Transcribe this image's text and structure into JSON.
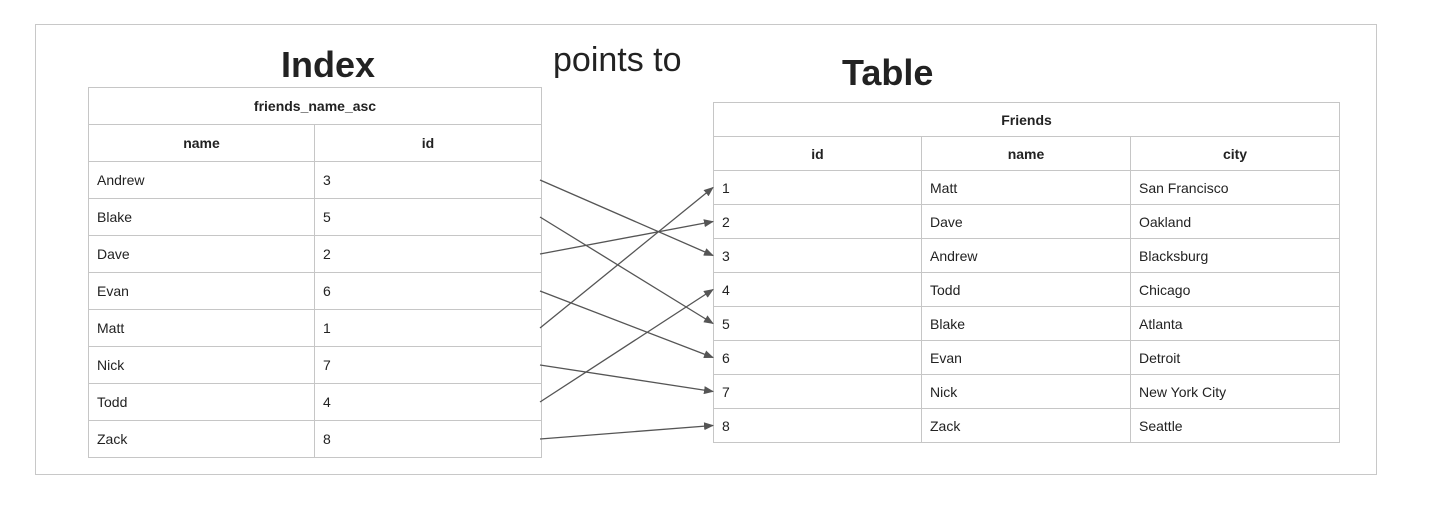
{
  "headings": {
    "index": "Index",
    "points_to": "points to",
    "table": "Table"
  },
  "index_table": {
    "title": "friends_name_asc",
    "columns": [
      "name",
      "id"
    ],
    "rows": [
      {
        "name": "Andrew",
        "id": "3"
      },
      {
        "name": "Blake",
        "id": "5"
      },
      {
        "name": "Dave",
        "id": "2"
      },
      {
        "name": "Evan",
        "id": "6"
      },
      {
        "name": "Matt",
        "id": "1"
      },
      {
        "name": "Nick",
        "id": "7"
      },
      {
        "name": "Todd",
        "id": "4"
      },
      {
        "name": "Zack",
        "id": "8"
      }
    ]
  },
  "friends_table": {
    "title": "Friends",
    "columns": [
      "id",
      "name",
      "city"
    ],
    "rows": [
      {
        "id": "1",
        "name": "Matt",
        "city": "San Francisco"
      },
      {
        "id": "2",
        "name": "Dave",
        "city": "Oakland"
      },
      {
        "id": "3",
        "name": "Andrew",
        "city": "Blacksburg"
      },
      {
        "id": "4",
        "name": "Todd",
        "city": "Chicago"
      },
      {
        "id": "5",
        "name": "Blake",
        "city": "Atlanta"
      },
      {
        "id": "6",
        "name": "Evan",
        "city": "Detroit"
      },
      {
        "id": "7",
        "name": "Nick",
        "city": "New York City"
      },
      {
        "id": "8",
        "name": "Zack",
        "city": "Seattle"
      }
    ]
  },
  "pointers": [
    {
      "from": "Andrew",
      "to": "3"
    },
    {
      "from": "Blake",
      "to": "5"
    },
    {
      "from": "Dave",
      "to": "2"
    },
    {
      "from": "Evan",
      "to": "6"
    },
    {
      "from": "Matt",
      "to": "1"
    },
    {
      "from": "Nick",
      "to": "7"
    },
    {
      "from": "Todd",
      "to": "4"
    },
    {
      "from": "Zack",
      "to": "8"
    }
  ],
  "colors": {
    "arrow": "#555555",
    "border": "#c6c6c6"
  }
}
